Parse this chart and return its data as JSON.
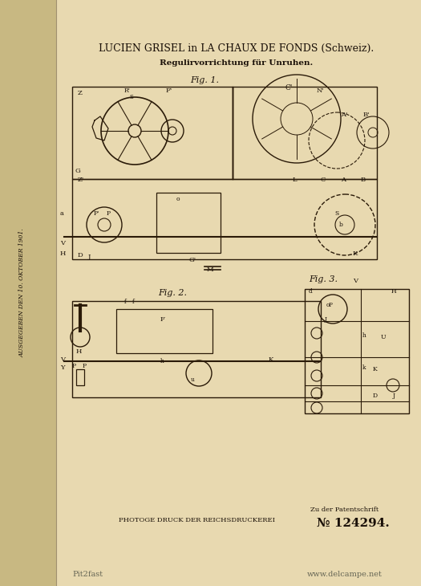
{
  "bg_color": "#e8d9b0",
  "left_strip_color": "#c8b882",
  "page_bg": "#dfd0a0",
  "title_line1": "LUCIEN GRISEL ᴵᴿ LA CHAUX DE FONDS (Schweiz).",
  "title_line1_plain": "LUCIEN GRISEL in LA CHAUX DE FONDS (Schweiz).",
  "title_line2": "Regulirvorrichtung für Unruhen.",
  "fig1_label": "Fig. 1.",
  "fig2_label": "Fig. 2.",
  "fig3_label": "Fig. 3.",
  "bottom_left": "PHOTOGE DRUCK DER REICHSDRUCKEREI",
  "bottom_right_line1": "Zu der Patentschrift",
  "bottom_right_line2": "№ 124294.",
  "watermark_left": "Pit2fast",
  "watermark_right": "www.delcampe.net",
  "side_text": "AUSGEGEBEN DEN 10. OKTOBER 1901.",
  "ink_color": "#1a1008",
  "line_color": "#2a1a08"
}
